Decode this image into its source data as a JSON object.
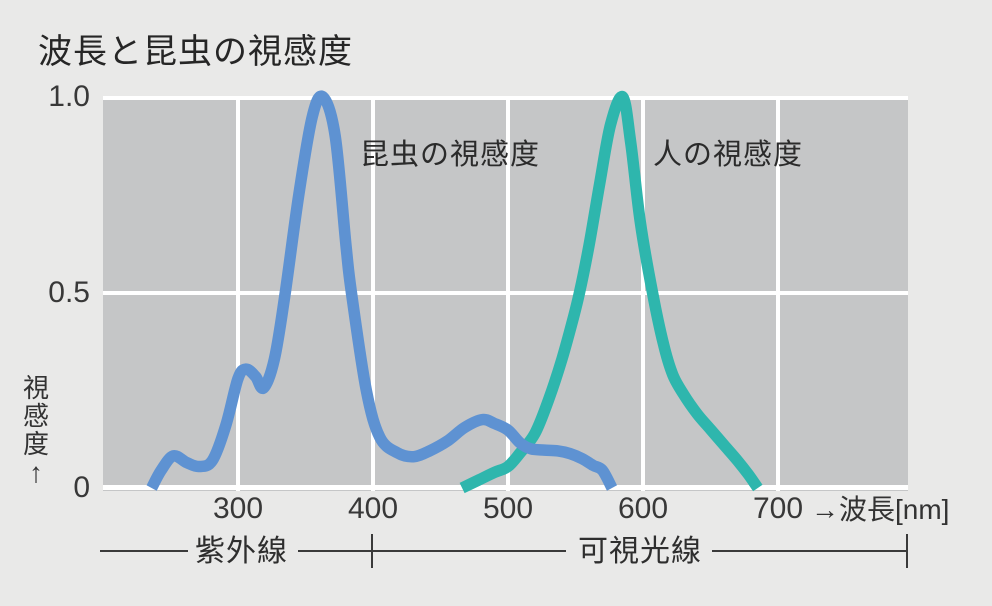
{
  "title": "波長と昆虫の視感度",
  "curve_labels": {
    "insect": "昆虫の視感度",
    "human": "人の視感度"
  },
  "y_axis": {
    "label": "視感度",
    "arrow": "↑",
    "ticks": [
      "1.0",
      "0.5",
      "0"
    ]
  },
  "x_axis": {
    "title": "→波長[nm]"
  },
  "regions": {
    "uv": "紫外線",
    "visible": "可視光線"
  },
  "colors": {
    "insect": "#5e92d2",
    "human": "#2eb6ad",
    "plot_bg": "#c5c6c7",
    "page_bg": "#e9e9e8",
    "grid": "#ffffff",
    "band_line": "#3a3a3a",
    "text": "#2e2e2e"
  },
  "chart_data": {
    "type": "line",
    "title": "波長と昆虫の視感度",
    "xlabel": "波長 [nm]",
    "ylabel": "視感度",
    "xlim": [
      200,
      795
    ],
    "ylim": [
      0,
      1.0
    ],
    "x_ticks": [
      300,
      400,
      500,
      600,
      700
    ],
    "y_ticks": [
      0,
      0.5,
      1.0
    ],
    "grid": true,
    "legend_position": "inline-annotations",
    "annotations": [
      {
        "text": "紫外線",
        "region_nm": [
          200,
          400
        ]
      },
      {
        "text": "可視光線",
        "region_nm": [
          400,
          795
        ]
      }
    ],
    "series": [
      {
        "name": "人の視感度",
        "color": "#2eb6ad",
        "peak_nm": 585,
        "x": [
          466,
          478,
          490,
          500,
          509,
          520,
          530,
          540,
          548,
          553,
          560,
          568,
          576,
          585,
          591,
          598,
          607,
          615,
          622,
          630,
          640,
          650,
          660,
          670,
          678,
          685
        ],
        "y": [
          0,
          0.02,
          0.04,
          0.055,
          0.09,
          0.14,
          0.225,
          0.33,
          0.43,
          0.5,
          0.62,
          0.78,
          0.93,
          1.0,
          0.88,
          0.68,
          0.5,
          0.37,
          0.29,
          0.24,
          0.19,
          0.15,
          0.11,
          0.07,
          0.035,
          0
        ]
      },
      {
        "name": "昆虫の視感度",
        "color": "#5e92d2",
        "peak_nm": 363,
        "x": [
          236,
          243,
          252,
          262,
          271,
          281,
          291,
          300,
          306,
          313,
          319,
          327,
          335,
          345,
          355,
          363,
          372,
          380,
          384,
          395,
          405,
          418,
          430,
          442,
          455,
          468,
          481,
          490,
          500,
          509,
          517,
          527,
          537,
          546,
          555,
          563,
          570,
          577
        ],
        "y": [
          0,
          0.045,
          0.082,
          0.065,
          0.055,
          0.07,
          0.16,
          0.28,
          0.304,
          0.285,
          0.256,
          0.33,
          0.5,
          0.75,
          0.95,
          1.0,
          0.9,
          0.62,
          0.5,
          0.25,
          0.13,
          0.09,
          0.08,
          0.095,
          0.12,
          0.155,
          0.175,
          0.165,
          0.148,
          0.115,
          0.1,
          0.097,
          0.095,
          0.088,
          0.075,
          0.058,
          0.045,
          0
        ]
      }
    ]
  }
}
